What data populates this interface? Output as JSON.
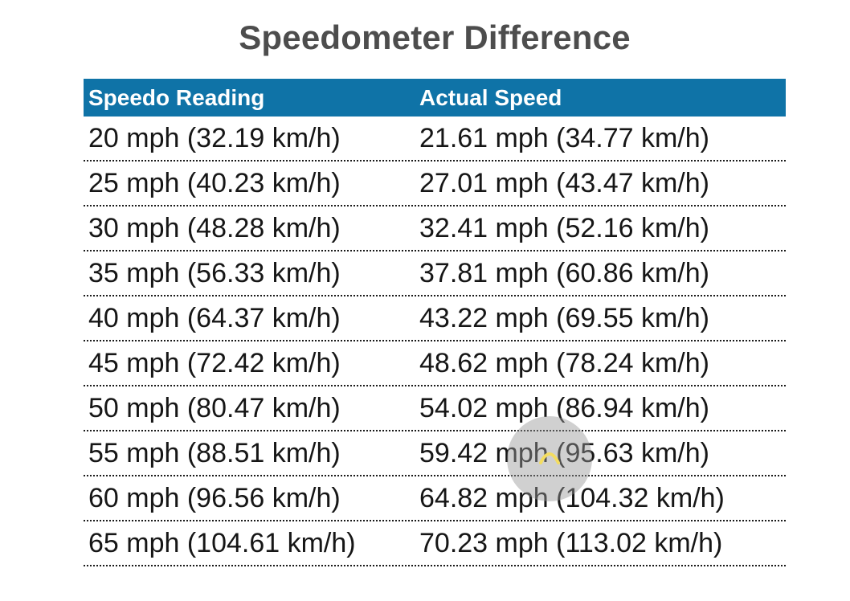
{
  "page": {
    "title": "Speedometer Difference"
  },
  "table": {
    "headers": [
      "Speedo Reading",
      "Actual Speed"
    ],
    "rows": [
      [
        "20 mph (32.19 km/h)",
        "21.61 mph (34.77 km/h)"
      ],
      [
        "25 mph (40.23 km/h)",
        "27.01 mph (43.47 km/h)"
      ],
      [
        "30 mph (48.28 km/h)",
        "32.41 mph (52.16 km/h)"
      ],
      [
        "35 mph (56.33 km/h)",
        "37.81 mph (60.86 km/h)"
      ],
      [
        "40 mph (64.37 km/h)",
        "43.22 mph (69.55 km/h)"
      ],
      [
        "45 mph (72.42 km/h)",
        "48.62 mph (78.24 km/h)"
      ],
      [
        "50 mph (80.47 km/h)",
        "54.02 mph (86.94 km/h)"
      ],
      [
        "55 mph (88.51 km/h)",
        "59.42 mph (95.63 km/h)"
      ],
      [
        "60 mph (96.56 km/h)",
        "64.82 mph (104.32 km/h)"
      ],
      [
        "65 mph (104.61 km/h)",
        "70.23 mph (113.02 km/h)"
      ]
    ]
  },
  "colors": {
    "header_bg": "#0f73a7",
    "title_text": "#4d4d4d",
    "cell_text": "#161616"
  },
  "icons": {
    "touch_indicator": "touch-ripple-icon"
  }
}
